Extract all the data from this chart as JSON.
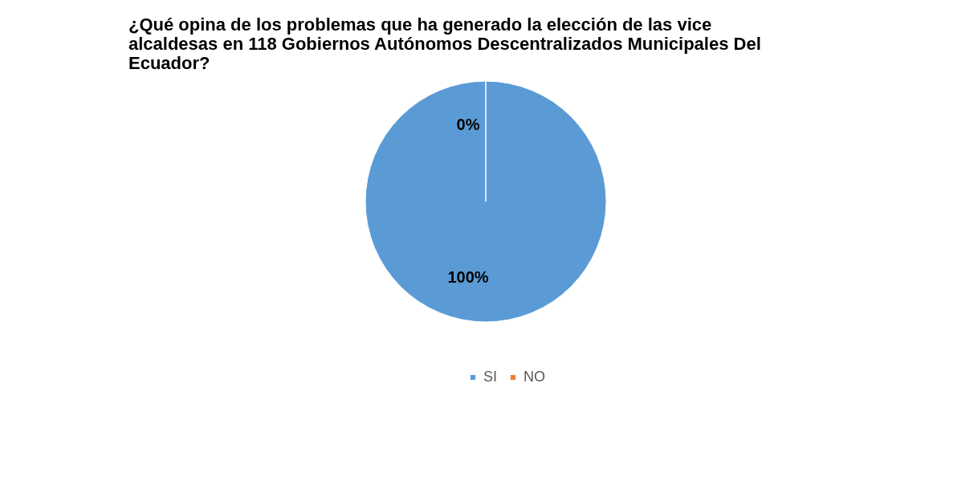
{
  "chart_data": {
    "type": "pie",
    "title": "¿Qué opina de los problemas que ha generado la elección de las vice alcaldesas en 118 Gobiernos Autónomos Descentralizados Municipales Del Ecuador?",
    "categories": [
      "SI",
      "NO"
    ],
    "values": [
      100,
      0
    ],
    "colors": [
      "#5b9bd5",
      "#ed7d31"
    ],
    "value_labels": [
      "100%",
      "0%"
    ],
    "legend": "bottom"
  }
}
